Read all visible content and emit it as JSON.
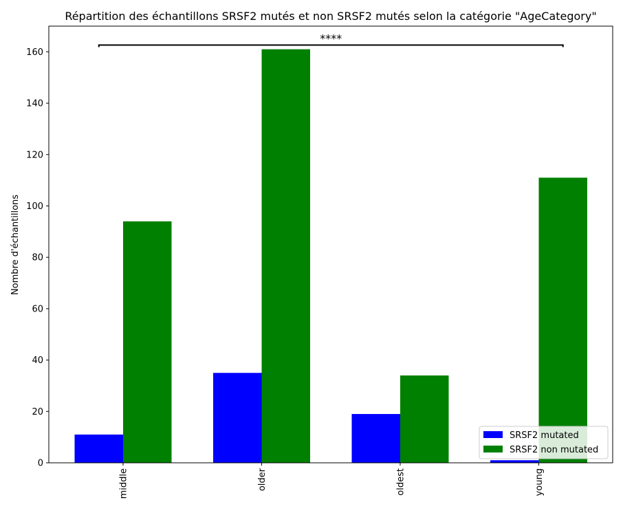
{
  "chart_data": {
    "type": "bar",
    "title": "Répartition des échantillons SRSF2 mutés et non SRSF2 mutés selon la catégorie \"AgeCategory\"",
    "xlabel": "",
    "ylabel": "Nombre d'échantillons",
    "categories": [
      "middle",
      "older",
      "oldest",
      "young"
    ],
    "series": [
      {
        "name": "SRSF2 mutated",
        "color": "#0000ff",
        "values": [
          11,
          35,
          19,
          1
        ]
      },
      {
        "name": "SRSF2 non mutated",
        "color": "#008000",
        "values": [
          94,
          161,
          34,
          111
        ]
      }
    ],
    "ylim": [
      0,
      170
    ],
    "yticks": [
      0,
      20,
      40,
      60,
      80,
      100,
      120,
      140,
      160
    ],
    "grid": false,
    "legend_position": "bottom-right",
    "annotation": {
      "text": "****",
      "y": 162.5,
      "from_category": "middle",
      "to_category": "young"
    }
  }
}
